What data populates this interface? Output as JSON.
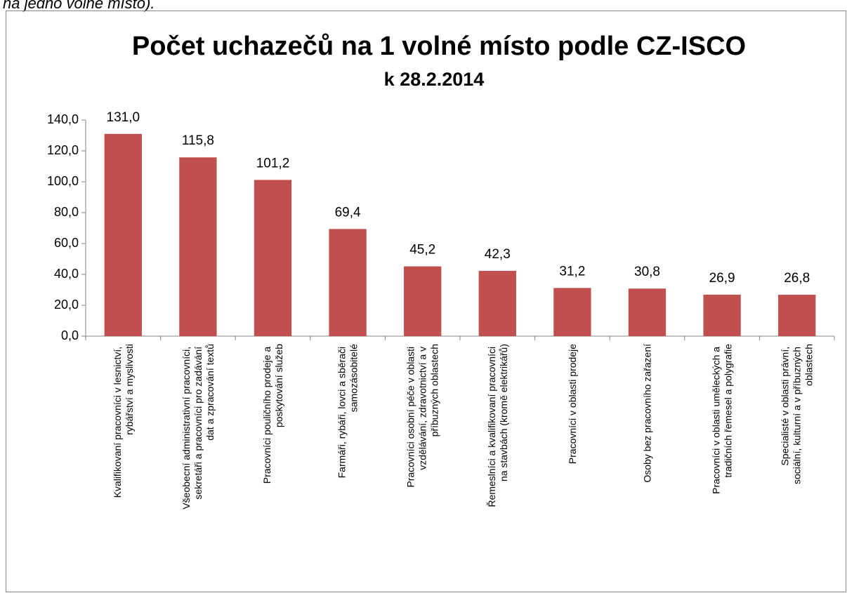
{
  "caption": "na jedno volné místo).",
  "chart_data": {
    "type": "bar",
    "title": "Počet uchazečů na 1 volné místo podle CZ-ISCO",
    "subtitle": "k 28.2.2014",
    "categories": [
      "Kvalifikovaní pracovníci v lesnictví, rybářství a myslivosti",
      "Všeobecní administrativní pracovníci, sekretáři a pracovníci pro zadávání dat a zpracování textů",
      "Pracovníci pouličního prodeje a poskytování služeb",
      "Farmáři, rybáři, lovci a sběrači samozásobitelé",
      "Pracovníci osobní péče v oblasti vzdělávání, zdravotnictví a v příbuzných oblastech",
      "Řemeslníci a kvalifikovaní pracovníci na stavbách (kromě elektrikářů)",
      "Pracovníci v oblasti prodeje",
      "Osoby bez pracovního zařazení",
      "Pracovníci v oblasti uměleckých a tradičních řemesel a polygrafie",
      "Specialisté v oblasti právní, sociální, kulturní a v příbuzných oblastech"
    ],
    "values": [
      131.0,
      115.8,
      101.2,
      69.4,
      45.2,
      42.3,
      31.2,
      30.8,
      26.9,
      26.8
    ],
    "value_labels": [
      "131,0",
      "115,8",
      "101,2",
      "69,4",
      "45,2",
      "42,3",
      "31,2",
      "30,8",
      "26,9",
      "26,8"
    ],
    "color": "#c0504d",
    "ylim": [
      0,
      140
    ],
    "yticks": [
      {
        "value": 0,
        "label": "0,0"
      },
      {
        "value": 20,
        "label": "20,0"
      },
      {
        "value": 40,
        "label": "40,0"
      },
      {
        "value": 60,
        "label": "60,0"
      },
      {
        "value": 80,
        "label": "80,0"
      },
      {
        "value": 100,
        "label": "100,0"
      },
      {
        "value": 120,
        "label": "120,0"
      },
      {
        "value": 140,
        "label": "140,0"
      }
    ],
    "grid": false
  }
}
